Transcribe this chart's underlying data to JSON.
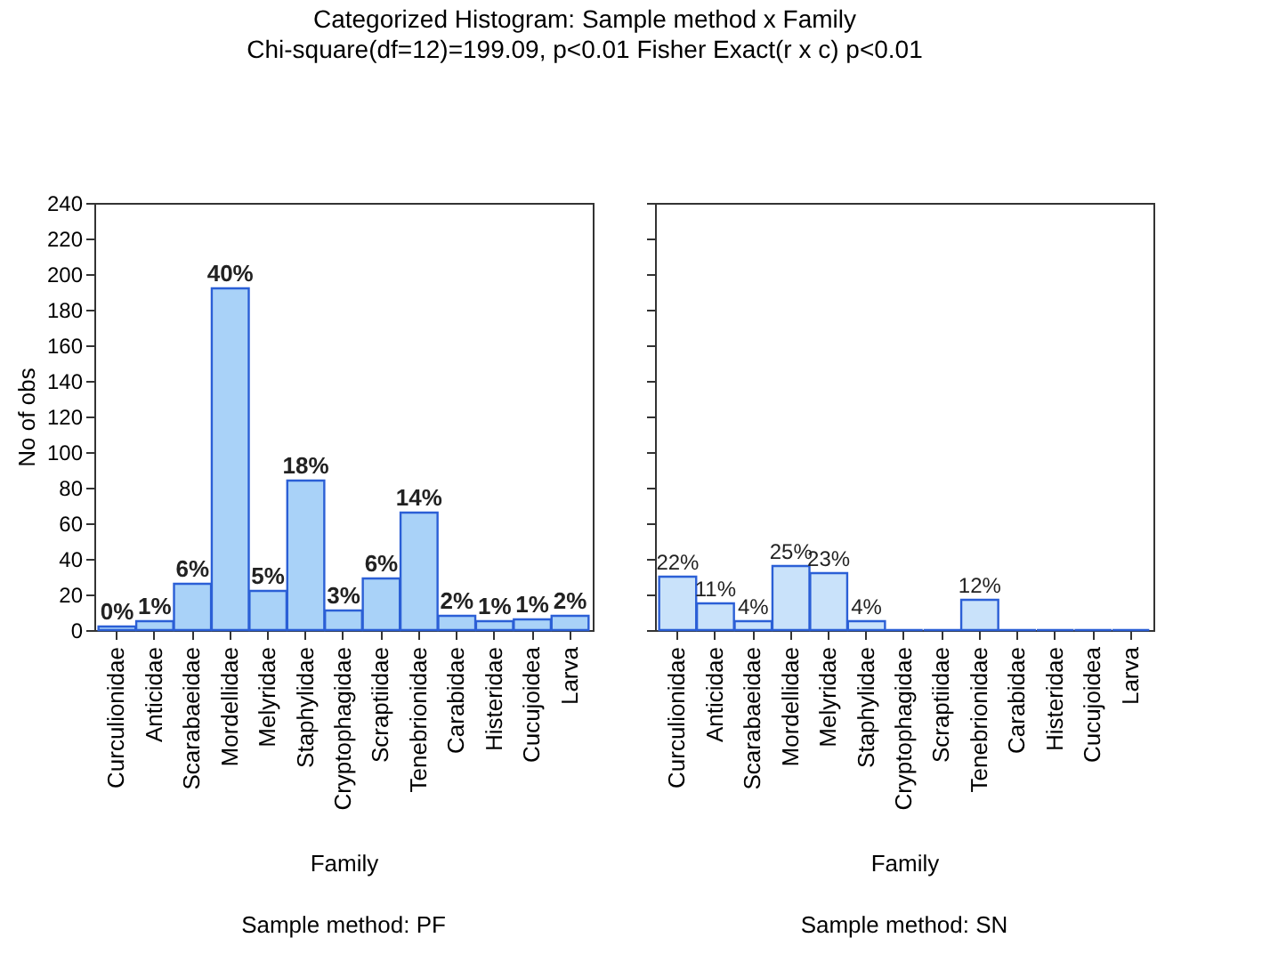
{
  "chart_data": [
    {
      "type": "bar",
      "title": "Categorized Histogram: Sample method x Family",
      "subtitle": "Chi-square(df=12)=199.09,  p<0.01 Fisher Exact(r x c) p<0.01",
      "xlabel": "Family",
      "ylabel": "No of obs",
      "annotations": [
        "Sample method: PF",
        {
          "text": "0%",
          "x": "Curculionidae",
          "y": 2
        },
        {
          "text": "1%",
          "x": "Anticidae",
          "y": 5
        },
        {
          "text": "6%",
          "x": "Scarabaeidae",
          "y": 26
        },
        {
          "text": "40%",
          "x": "Mordellidae",
          "y": 192
        },
        {
          "text": "5%",
          "x": "Melyridae",
          "y": 22
        },
        {
          "text": "18%",
          "x": "Staphylidae",
          "y": 84
        },
        {
          "text": "3%",
          "x": "Cryptophagidae",
          "y": 11
        },
        {
          "text": "6%",
          "x": "Scraptiidae",
          "y": 29
        },
        {
          "text": "14%",
          "x": "Tenebrionidae",
          "y": 66
        },
        {
          "text": "2%",
          "x": "Carabidae",
          "y": 8
        },
        {
          "text": "1%",
          "x": "Histeridae",
          "y": 5
        },
        {
          "text": "1%",
          "x": "Cucujoidea",
          "y": 6
        },
        {
          "text": "2%",
          "x": "Larva",
          "y": 8
        }
      ],
      "categories": [
        "Curculionidae",
        "Anticidae",
        "Scarabaeidae",
        "Mordellidae",
        "Melyridae",
        "Staphylidae",
        "Cryptophagidae",
        "Scraptiidae",
        "Tenebrionidae",
        "Carabidae",
        "Histeridae",
        "Cucujoidea",
        "Larva"
      ],
      "values": [
        2,
        5,
        26,
        192,
        22,
        84,
        11,
        29,
        66,
        8,
        5,
        6,
        8
      ],
      "color": "#a9d2f8",
      "ylim": [
        0,
        240
      ],
      "yticks": [
        0,
        20,
        40,
        60,
        80,
        100,
        120,
        140,
        160,
        180,
        200,
        220,
        240
      ]
    },
    {
      "type": "bar",
      "xlabel": "Family",
      "annotations": [
        "Sample method: SN",
        {
          "text": "22%",
          "x": "Curculionidae",
          "y": 30
        },
        {
          "text": "11%",
          "x": "Anticidae",
          "y": 15
        },
        {
          "text": "4%",
          "x": "Scarabaeidae",
          "y": 5
        },
        {
          "text": "25%",
          "x": "Mordellidae",
          "y": 36
        },
        {
          "text": "23%",
          "x": "Melyridae",
          "y": 32
        },
        {
          "text": "4%",
          "x": "Staphylidae",
          "y": 5
        },
        {
          "text": "12%",
          "x": "Tenebrionidae",
          "y": 17
        }
      ],
      "categories": [
        "Curculionidae",
        "Anticidae",
        "Scarabaeidae",
        "Mordellidae",
        "Melyridae",
        "Staphylidae",
        "Cryptophagidae",
        "Scraptiidae",
        "Tenebrionidae",
        "Carabidae",
        "Histeridae",
        "Cucujoidea",
        "Larva"
      ],
      "values": [
        30,
        15,
        5,
        36,
        32,
        5,
        0,
        0,
        17,
        0,
        0,
        0,
        0
      ],
      "color": "#c9e2fa",
      "ylim": [
        0,
        240
      ],
      "yticks": [
        0,
        20,
        40,
        60,
        80,
        100,
        120,
        140,
        160,
        180,
        200,
        220,
        240
      ],
      "tick_labels": "x"
    }
  ]
}
